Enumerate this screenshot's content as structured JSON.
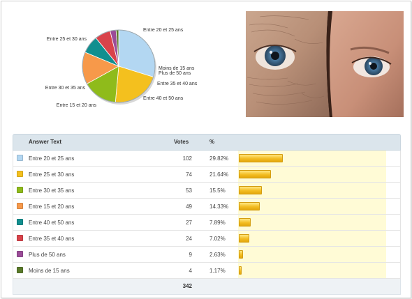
{
  "table": {
    "headers": {
      "answer": "Answer Text",
      "votes": "Votes",
      "percent": "%"
    },
    "rows": [
      {
        "answer": "Entre 20 et 25 ans",
        "votes": "102",
        "percent": "29.82%",
        "color": "#b3d7f2",
        "share": 0.2982
      },
      {
        "answer": "Entre 25 et 30 ans",
        "votes": "74",
        "percent": "21.64%",
        "color": "#f4c01e",
        "share": 0.2164
      },
      {
        "answer": "Entre 30 et 35 ans",
        "votes": "53",
        "percent": "15.5%",
        "color": "#8fbb1b",
        "share": 0.155
      },
      {
        "answer": "Entre 15 et 20 ans",
        "votes": "49",
        "percent": "14.33%",
        "color": "#f7994a",
        "share": 0.1433
      },
      {
        "answer": "Entre 40 et 50 ans",
        "votes": "27",
        "percent": "7.89%",
        "color": "#118f8f",
        "share": 0.0789
      },
      {
        "answer": "Entre 35 et 40 ans",
        "votes": "24",
        "percent": "7.02%",
        "color": "#d9434b",
        "share": 0.0702
      },
      {
        "answer": "Plus de 50 ans",
        "votes": "9",
        "percent": "2.63%",
        "color": "#9b4c98",
        "share": 0.0263
      },
      {
        "answer": "Moins de 15 ans",
        "votes": "4",
        "percent": "1.17%",
        "color": "#5a7a2a",
        "share": 0.0117
      }
    ],
    "total_votes": "342"
  },
  "chart_data": {
    "type": "pie",
    "categories": [
      "Entre 20 et 25 ans",
      "Entre 25 et 30 ans",
      "Entre 30 et 35 ans",
      "Entre 15 et 20 ans",
      "Entre 40 et 50 ans",
      "Entre 35 et 40 ans",
      "Plus de 50 ans",
      "Moins de 15 ans"
    ],
    "values": [
      102,
      74,
      53,
      49,
      27,
      24,
      9,
      4
    ],
    "colors": [
      "#b3d7f2",
      "#f4c01e",
      "#8fbb1b",
      "#f7994a",
      "#118f8f",
      "#d9434b",
      "#9b4c98",
      "#5a7a2a"
    ],
    "title": ""
  }
}
